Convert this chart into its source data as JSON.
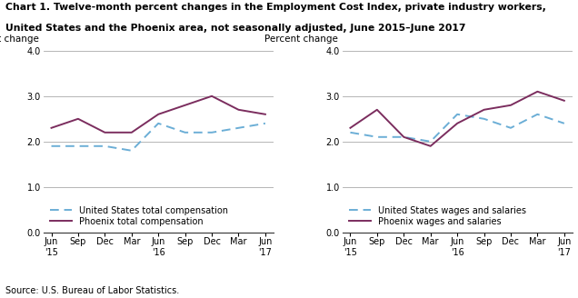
{
  "title_line1": "Chart 1. Twelve-month percent changes in the Employment Cost Index, private industry workers,",
  "title_line2": "United States and the Phoenix area, not seasonally adjusted, June 2015–June 2017",
  "source": "Source: U.S. Bureau of Labor Statistics.",
  "x_labels": [
    "Jun\n'15",
    "Sep",
    "Dec",
    "Mar",
    "Jun\n'16",
    "Sep",
    "Dec",
    "Mar",
    "Jun\n'17"
  ],
  "left": {
    "us_total_comp": [
      1.9,
      1.9,
      1.9,
      1.8,
      2.4,
      2.2,
      2.2,
      2.3,
      2.4
    ],
    "phoenix_total_comp": [
      2.3,
      2.5,
      2.2,
      2.2,
      2.6,
      2.8,
      3.0,
      2.7,
      2.6
    ],
    "legend1": "United States total compensation",
    "legend2": "Phoenix total compensation",
    "ylabel": "Percent change"
  },
  "right": {
    "us_wages_salaries": [
      2.2,
      2.1,
      2.1,
      2.0,
      2.6,
      2.5,
      2.3,
      2.6,
      2.4
    ],
    "phoenix_wages_salaries": [
      2.3,
      2.7,
      2.1,
      1.9,
      2.4,
      2.7,
      2.8,
      3.1,
      2.9
    ],
    "legend1": "United States wages and salaries",
    "legend2": "Phoenix wages and salaries",
    "ylabel": "Percent change"
  },
  "ylim": [
    0.0,
    4.0
  ],
  "yticks": [
    0.0,
    1.0,
    2.0,
    3.0,
    4.0
  ],
  "us_color": "#6baed6",
  "phoenix_color": "#7b2d5e",
  "background_color": "#ffffff",
  "grid_color": "#aaaaaa",
  "title_fontsize": 7.8,
  "axis_label_fontsize": 7.5,
  "tick_fontsize": 7,
  "legend_fontsize": 7,
  "source_fontsize": 7
}
